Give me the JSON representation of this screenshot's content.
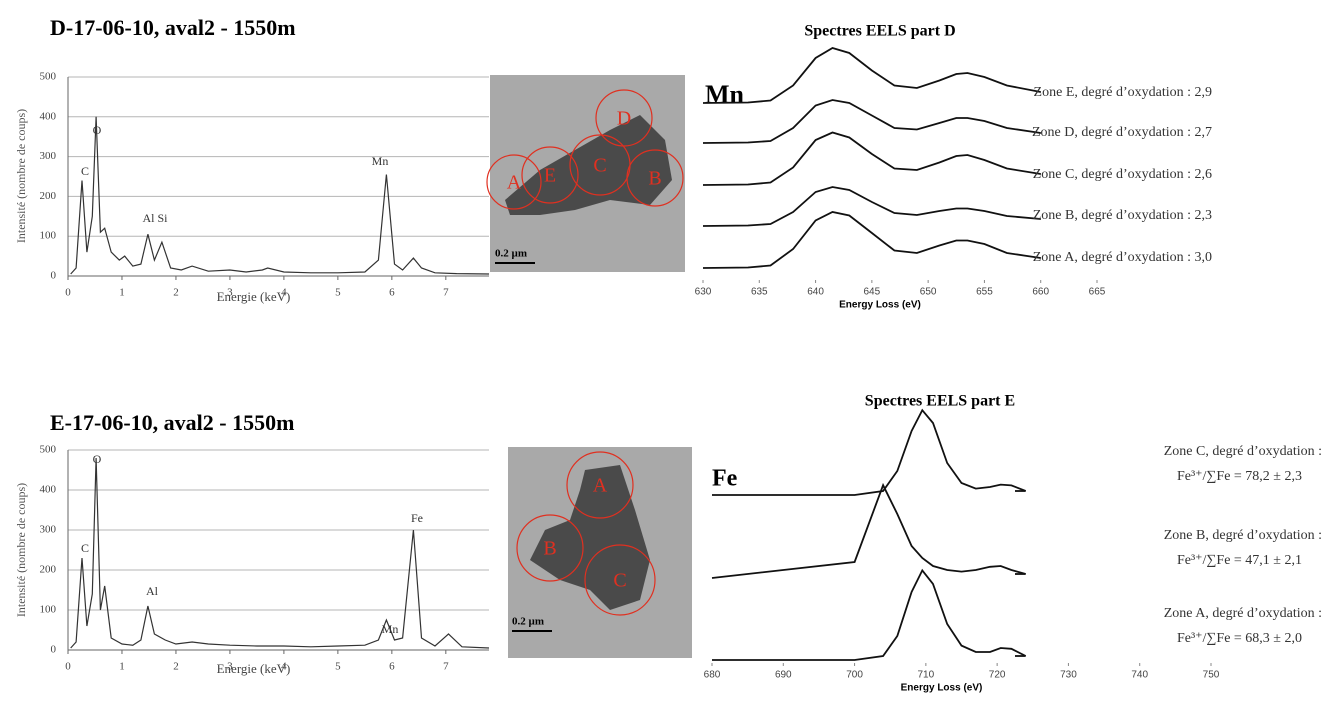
{
  "chart_data": [
    {
      "type": "line",
      "title": "D-17-06-10, aval2 - 1550m",
      "xlabel": "Energie (keV)",
      "ylabel": "Intensité (nombre de coups)",
      "x": [
        0.05,
        0.15,
        0.26,
        0.35,
        0.45,
        0.52,
        0.6,
        0.68,
        0.8,
        0.95,
        1.05,
        1.2,
        1.35,
        1.48,
        1.6,
        1.74,
        1.9,
        2.1,
        2.3,
        2.6,
        3.0,
        3.3,
        3.6,
        3.7,
        4.0,
        4.5,
        5.0,
        5.5,
        5.75,
        5.9,
        6.05,
        6.2,
        6.4,
        6.55,
        6.8,
        7.2,
        7.8
      ],
      "values": [
        5,
        20,
        240,
        60,
        150,
        400,
        110,
        120,
        60,
        40,
        50,
        25,
        30,
        105,
        40,
        85,
        20,
        15,
        25,
        12,
        15,
        10,
        15,
        20,
        10,
        8,
        8,
        10,
        40,
        255,
        30,
        15,
        45,
        20,
        8,
        6,
        5
      ],
      "color": "#333333",
      "xlim": [
        0,
        7.8
      ],
      "ylim": [
        0,
        500
      ],
      "xticks": [
        0,
        1,
        2,
        3,
        4,
        5,
        6,
        7
      ],
      "yticks": [
        0,
        100,
        200,
        300,
        400,
        500
      ],
      "grid": true,
      "annotations": [
        "C",
        "O",
        "Al Si",
        "Mn"
      ]
    },
    {
      "type": "ridgeline",
      "title": "Spectres EELS part D",
      "label": "Mn",
      "xlabel": "Energy Loss (eV)",
      "x": [
        630,
        634,
        636,
        638,
        640,
        641.5,
        643,
        645,
        647,
        649,
        651,
        652.5,
        653.5,
        655,
        657,
        660
      ],
      "xlim": [
        630,
        665
      ],
      "xticks": [
        630,
        635,
        640,
        645,
        650,
        655,
        660,
        665
      ],
      "color": "#111111",
      "series": [
        {
          "name": "Zone E, degré d’oxydation : 2,9",
          "values": [
            0,
            0.01,
            0.05,
            0.35,
            0.9,
            1.1,
            1.0,
            0.65,
            0.35,
            0.3,
            0.45,
            0.58,
            0.6,
            0.52,
            0.35,
            0.22
          ]
        },
        {
          "name": "Zone D, degré d’oxydation : 2,7",
          "values": [
            0,
            0.01,
            0.04,
            0.3,
            0.75,
            0.86,
            0.8,
            0.55,
            0.3,
            0.27,
            0.4,
            0.5,
            0.5,
            0.44,
            0.3,
            0.2
          ]
        },
        {
          "name": "Zone C, degré d’oxydation : 2,6",
          "values": [
            0,
            0.01,
            0.05,
            0.35,
            0.9,
            1.05,
            0.95,
            0.62,
            0.33,
            0.3,
            0.45,
            0.58,
            0.6,
            0.5,
            0.33,
            0.22
          ]
        },
        {
          "name": "Zone B, degré d’oxydation : 2,3",
          "values": [
            0,
            0.01,
            0.04,
            0.28,
            0.68,
            0.78,
            0.72,
            0.48,
            0.26,
            0.22,
            0.3,
            0.35,
            0.35,
            0.3,
            0.2,
            0.14
          ]
        },
        {
          "name": "Zone A, degré d’oxydation : 3,0",
          "values": [
            0,
            0.01,
            0.05,
            0.38,
            0.95,
            1.12,
            1.05,
            0.7,
            0.35,
            0.3,
            0.45,
            0.55,
            0.55,
            0.48,
            0.3,
            0.2
          ]
        }
      ]
    },
    {
      "type": "line",
      "title": "E-17-06-10, aval2 - 1550m",
      "xlabel": "Energie (keV)",
      "ylabel": "Intensité (nombre de coups)",
      "x": [
        0.05,
        0.15,
        0.26,
        0.35,
        0.45,
        0.52,
        0.6,
        0.68,
        0.8,
        1.0,
        1.2,
        1.35,
        1.48,
        1.6,
        1.8,
        2.0,
        2.3,
        2.6,
        3.0,
        3.5,
        4.0,
        4.5,
        5.0,
        5.5,
        5.75,
        5.9,
        6.05,
        6.2,
        6.4,
        6.55,
        6.8,
        7.05,
        7.3,
        7.8
      ],
      "values": [
        5,
        20,
        230,
        60,
        140,
        480,
        100,
        160,
        30,
        15,
        12,
        25,
        110,
        40,
        25,
        15,
        20,
        15,
        12,
        10,
        10,
        8,
        10,
        12,
        25,
        75,
        25,
        30,
        300,
        30,
        10,
        40,
        8,
        5
      ],
      "color": "#333333",
      "xlim": [
        0,
        7.8
      ],
      "ylim": [
        0,
        500
      ],
      "xticks": [
        0,
        1,
        2,
        3,
        4,
        5,
        6,
        7
      ],
      "yticks": [
        0,
        100,
        200,
        300,
        400,
        500
      ],
      "grid": true,
      "annotations": [
        "C",
        "O",
        "Al",
        "Mn",
        "Fe"
      ]
    },
    {
      "type": "ridgeline",
      "title": "Spectres EELS part E",
      "label": "Fe",
      "xlabel": "Energy Loss (eV)",
      "x": [
        680,
        700,
        704,
        706,
        708,
        709.5,
        711,
        713,
        715,
        717,
        719,
        720.5,
        722,
        724
      ],
      "xlim": [
        680,
        750
      ],
      "xticks": [
        680,
        690,
        700,
        710,
        720,
        730,
        740,
        750
      ],
      "color": "#111111",
      "series": [
        {
          "name": "Zone C, degré d’oxydation :",
          "detail": "Fe³⁺/∑Fe = 78,2 ± 2,3",
          "values": [
            0,
            0,
            0.05,
            0.3,
            0.8,
            1.06,
            0.9,
            0.4,
            0.15,
            0.08,
            0.1,
            0.13,
            0.12,
            0.05
          ]
        },
        {
          "name": "Zone B, degré d’oxydation :",
          "detail": "Fe³⁺/∑Fe = 47,1 ± 2,1",
          "values": [
            0,
            0.2,
            1.16,
            0.8,
            0.4,
            0.25,
            0.15,
            0.1,
            0.08,
            0.1,
            0.14,
            0.15,
            0.1,
            0.05
          ]
        },
        {
          "name": "Zone A, degré d’oxydation :",
          "detail": "Fe³⁺/∑Fe = 68,3 ± 2,0",
          "values": [
            0,
            0,
            0.05,
            0.3,
            0.85,
            1.12,
            0.95,
            0.45,
            0.18,
            0.1,
            0.1,
            0.15,
            0.14,
            0.05
          ]
        }
      ]
    }
  ],
  "images": [
    {
      "labels": [
        "A",
        "E",
        "C",
        "D",
        "B"
      ],
      "scale_bar": "0.2 µm"
    },
    {
      "labels": [
        "A",
        "B",
        "C"
      ],
      "scale_bar": "0.2 µm"
    }
  ]
}
